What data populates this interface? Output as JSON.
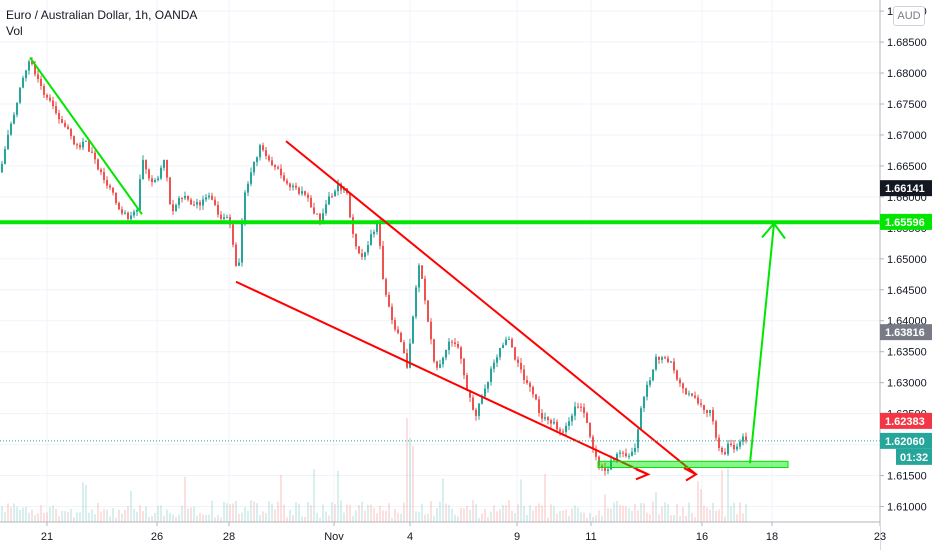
{
  "header": {
    "symbol_line": "Euro / Australian Dollar, 1h, OANDA",
    "volume_label": "Vol"
  },
  "currency_button": "AUD",
  "chart_data": {
    "type": "candlestick",
    "title": "Euro / Australian Dollar, 1h, OANDA",
    "x_tick_labels": [
      "21",
      "26",
      "28",
      "Nov",
      "4",
      "9",
      "11",
      "16",
      "18",
      "23"
    ],
    "y_tick_labels": [
      "1.69000",
      "1.68500",
      "1.68000",
      "1.67500",
      "1.67000",
      "1.66500",
      "1.66000",
      "1.65500",
      "1.65000",
      "1.64500",
      "1.64000",
      "1.63500",
      "1.63000",
      "1.62500",
      "1.62000",
      "1.61500",
      "1.61000"
    ],
    "ylim": [
      1.6075,
      1.6905
    ],
    "price_badges": [
      {
        "label": "1.66141",
        "value": 1.66141,
        "color": "#131722"
      },
      {
        "label": "1.65596",
        "value": 1.65596,
        "color": "#00e600"
      },
      {
        "label": "1.63816",
        "value": 1.63816,
        "color": "#787b86"
      },
      {
        "label": "1.62383",
        "value": 1.62383,
        "color": "#f23645"
      },
      {
        "label": "1.62060",
        "value": 1.6206,
        "color": "#26a69a"
      }
    ],
    "countdown": "01:32",
    "current_price": 1.6206,
    "price_path": [
      [
        0,
        1.664
      ],
      [
        3,
        1.6655
      ],
      [
        8,
        1.67
      ],
      [
        15,
        1.673
      ],
      [
        22,
        1.679
      ],
      [
        30,
        1.6825
      ],
      [
        38,
        1.679
      ],
      [
        46,
        1.676
      ],
      [
        55,
        1.674
      ],
      [
        65,
        1.672
      ],
      [
        75,
        1.668
      ],
      [
        85,
        1.669
      ],
      [
        95,
        1.666
      ],
      [
        105,
        1.663
      ],
      [
        115,
        1.66
      ],
      [
        122,
        1.6575
      ],
      [
        130,
        1.6565
      ],
      [
        138,
        1.6585
      ],
      [
        142,
        1.666
      ],
      [
        150,
        1.663
      ],
      [
        158,
        1.6625
      ],
      [
        165,
        1.666
      ],
      [
        172,
        1.657
      ],
      [
        182,
        1.66
      ],
      [
        190,
        1.659
      ],
      [
        200,
        1.6585
      ],
      [
        210,
        1.66
      ],
      [
        220,
        1.657
      ],
      [
        230,
        1.656
      ],
      [
        238,
        1.647
      ],
      [
        245,
        1.66
      ],
      [
        252,
        1.664
      ],
      [
        260,
        1.668
      ],
      [
        270,
        1.666
      ],
      [
        280,
        1.664
      ],
      [
        290,
        1.662
      ],
      [
        300,
        1.661
      ],
      [
        310,
        1.659
      ],
      [
        320,
        1.656
      ],
      [
        330,
        1.66
      ],
      [
        340,
        1.662
      ],
      [
        348,
        1.66
      ],
      [
        355,
        1.652
      ],
      [
        362,
        1.65
      ],
      [
        370,
        1.653
      ],
      [
        378,
        1.656
      ],
      [
        384,
        1.646
      ],
      [
        392,
        1.64
      ],
      [
        400,
        1.637
      ],
      [
        408,
        1.632
      ],
      [
        415,
        1.643
      ],
      [
        420,
        1.65
      ],
      [
        428,
        1.64
      ],
      [
        436,
        1.632
      ],
      [
        444,
        1.634
      ],
      [
        452,
        1.637
      ],
      [
        460,
        1.635
      ],
      [
        468,
        1.628
      ],
      [
        476,
        1.625
      ],
      [
        484,
        1.628
      ],
      [
        492,
        1.632
      ],
      [
        500,
        1.635
      ],
      [
        508,
        1.637
      ],
      [
        516,
        1.634
      ],
      [
        524,
        1.631
      ],
      [
        532,
        1.629
      ],
      [
        540,
        1.625
      ],
      [
        548,
        1.624
      ],
      [
        556,
        1.623
      ],
      [
        564,
        1.622
      ],
      [
        572,
        1.625
      ],
      [
        580,
        1.627
      ],
      [
        588,
        1.623
      ],
      [
        596,
        1.618
      ],
      [
        604,
        1.616
      ],
      [
        612,
        1.617
      ],
      [
        620,
        1.6185
      ],
      [
        628,
        1.618
      ],
      [
        635,
        1.619
      ],
      [
        642,
        1.627
      ],
      [
        650,
        1.63
      ],
      [
        656,
        1.634
      ],
      [
        664,
        1.6345
      ],
      [
        672,
        1.633
      ],
      [
        680,
        1.63
      ],
      [
        688,
        1.628
      ],
      [
        696,
        1.627
      ],
      [
        704,
        1.626
      ],
      [
        712,
        1.625
      ],
      [
        718,
        1.62
      ],
      [
        724,
        1.618
      ],
      [
        730,
        1.621
      ],
      [
        736,
        1.619
      ],
      [
        744,
        1.621
      ],
      [
        748,
        1.6206
      ]
    ],
    "annotations": [
      {
        "type": "trendline",
        "color": "#00e600",
        "from": [
          30,
          1.6825
        ],
        "to": [
          142,
          1.6572
        ]
      },
      {
        "type": "trendline",
        "color": "#00e600",
        "from": [
          0,
          1.6559
        ],
        "to": [
          880,
          1.6559
        ]
      },
      {
        "type": "trendline",
        "color": "#ff0000",
        "from": [
          286,
          1.669
        ],
        "to": [
          696,
          1.6152
        ]
      },
      {
        "type": "trendline",
        "color": "#ff0000",
        "from": [
          236,
          1.6463
        ],
        "to": [
          648,
          1.6152
        ]
      },
      {
        "type": "arrow",
        "color": "#00e600",
        "from": [
          750,
          1.617
        ],
        "to": [
          774,
          1.6557
        ]
      },
      {
        "type": "zone",
        "color": "#00e600",
        "x": [
          598,
          788
        ],
        "y": [
          1.6173,
          1.6163
        ]
      }
    ]
  }
}
